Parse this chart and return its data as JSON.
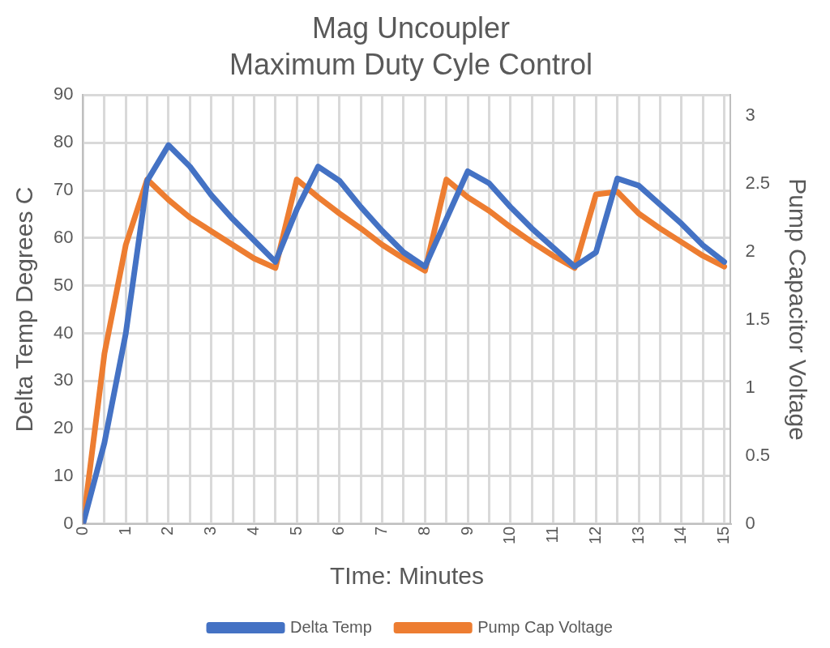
{
  "chart_data": {
    "type": "line",
    "title": "Mag Uncoupler",
    "subtitle": "Maximum Duty Cyle Control",
    "xlabel": "TIme: Minutes",
    "ylabel": "Delta Temp Degrees C",
    "y2label": "Pump Capacitor Voltage",
    "x": [
      0,
      0.5,
      1,
      1.5,
      2,
      2.5,
      3,
      3.5,
      4,
      4.5,
      5,
      5.5,
      6,
      6.5,
      7,
      7.5,
      8,
      8.5,
      9,
      9.5,
      10,
      10.5,
      11,
      11.5,
      12,
      12.5,
      13,
      13.5,
      14,
      14.5,
      15
    ],
    "series": [
      {
        "name": "Delta Temp",
        "color": "#4472c4",
        "values": [
          0,
          17,
          40,
          72,
          79.5,
          75,
          69,
          64,
          59.5,
          55,
          66,
          75,
          72,
          66.5,
          61.5,
          57,
          54,
          64,
          74,
          71.5,
          66.5,
          62,
          58,
          54,
          57,
          72.5,
          71,
          67,
          63,
          58.5,
          55
        ]
      },
      {
        "name": "Pump Cap Voltage",
        "color": "#ed7d31",
        "axis": "y2",
        "values": [
          0,
          1.25,
          2.05,
          2.53,
          2.38,
          2.25,
          2.15,
          2.05,
          1.95,
          1.88,
          2.53,
          2.4,
          2.28,
          2.17,
          2.05,
          1.95,
          1.86,
          2.53,
          2.4,
          2.3,
          2.18,
          2.07,
          1.97,
          1.88,
          2.42,
          2.44,
          2.28,
          2.17,
          2.07,
          1.97,
          1.89
        ]
      }
    ],
    "xlim": [
      0,
      15.15
    ],
    "xticks": [
      0,
      {
        "value": 0.5,
        "label": null
      },
      1,
      {
        "value": 1.5,
        "label": null
      },
      2,
      {
        "value": 2.5,
        "label": null
      },
      3,
      {
        "value": 3.5,
        "label": null
      },
      4,
      {
        "value": 4.5,
        "label": null
      },
      5,
      {
        "value": 5.5,
        "label": null
      },
      6,
      {
        "value": 6.5,
        "label": null
      },
      7,
      {
        "value": 7.5,
        "label": null
      },
      8,
      {
        "value": 8.5,
        "label": null
      },
      9,
      {
        "value": 9.5,
        "label": null
      },
      10,
      {
        "value": 10.5,
        "label": null
      },
      11,
      {
        "value": 11.5,
        "label": null
      },
      12,
      {
        "value": 12.5,
        "label": null
      },
      13,
      {
        "value": 13.5,
        "label": null
      },
      14,
      {
        "value": 14.5,
        "label": null
      },
      15
    ],
    "ylim": [
      0,
      90
    ],
    "yticks": [
      0,
      10,
      20,
      30,
      40,
      50,
      60,
      70,
      80,
      90
    ],
    "y2lim": [
      0,
      3.15
    ],
    "y2ticks": [
      0,
      0.5,
      1,
      1.5,
      2,
      2.5,
      3
    ],
    "grid": true,
    "legend": "bottom",
    "marker": "none",
    "line_style": "solid"
  }
}
